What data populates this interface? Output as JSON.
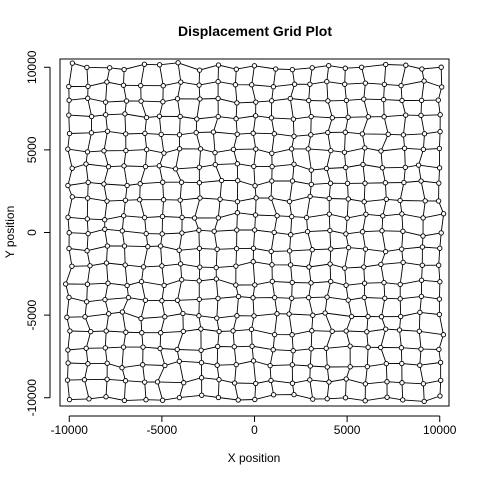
{
  "chart_data": {
    "type": "scatter",
    "title": "Displacement Grid Plot",
    "xlabel": "X position",
    "ylabel": "Y position",
    "xlim": [
      -10500,
      10500
    ],
    "ylim": [
      -10500,
      10500
    ],
    "x_ticks": [
      -10000,
      -5000,
      0,
      5000,
      10000
    ],
    "y_ticks": [
      -10000,
      -5000,
      0,
      5000,
      10000
    ],
    "grid": false,
    "legend": "none",
    "grid_spec": {
      "nx": 21,
      "ny": 21,
      "x_start": -10000,
      "x_end": 10000,
      "y_start": -10000,
      "y_end": 10000,
      "spacing": 1000,
      "jitter": 220,
      "connect": "rows-and-columns"
    },
    "colors": {
      "line": "#000000",
      "point": "#000000",
      "point_fill": "#ffffff",
      "axis": "#000000"
    }
  }
}
